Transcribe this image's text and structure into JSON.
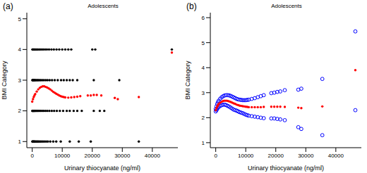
{
  "chart_data": [
    {
      "type": "scatter",
      "title": "Adolescents",
      "annotations": [
        "(a)"
      ],
      "x_label": "Urinary thiocyanate (ng/ml)",
      "y_label": "BMI Category",
      "xlim": [
        -1800,
        48500
      ],
      "xticks": [
        0,
        10000,
        20000,
        30000,
        40000
      ],
      "ylim": [
        0.8,
        5.2
      ],
      "yticks": [
        1,
        2,
        3,
        4,
        5
      ],
      "grid": false,
      "series": [
        {
          "color": "#000000",
          "marker": "circle",
          "x": [
            50,
            150,
            300,
            450,
            600,
            800,
            1000,
            1300,
            1600,
            1900,
            2200,
            2600,
            3000,
            3500,
            4000,
            4600,
            5200,
            6000,
            7000,
            8000,
            9500,
            12500,
            15500,
            19500,
            35500
          ],
          "values": [
            1,
            1,
            1,
            1,
            1,
            1,
            1,
            1,
            1,
            1,
            1,
            1,
            1,
            1,
            1,
            1,
            1,
            1,
            1,
            1,
            1,
            1,
            1,
            1,
            1
          ]
        },
        {
          "color": "#000000",
          "marker": "circle",
          "x": [
            30,
            120,
            250,
            400,
            550,
            700,
            900,
            1100,
            1400,
            1700,
            2000,
            2400,
            2800,
            3300,
            3800,
            4400,
            5000,
            5700,
            6500,
            7300,
            8200,
            9200,
            10300,
            11500,
            12500,
            13800,
            15000,
            16500,
            20500,
            22500,
            24000
          ],
          "values": [
            2,
            2,
            2,
            2,
            2,
            2,
            2,
            2,
            2,
            2,
            2,
            2,
            2,
            2,
            2,
            2,
            2,
            2,
            2,
            2,
            2,
            2,
            2,
            2,
            2,
            2,
            2,
            2,
            2,
            2,
            2
          ]
        },
        {
          "color": "#000000",
          "marker": "circle",
          "x": [
            40,
            140,
            280,
            420,
            580,
            750,
            950,
            1200,
            1500,
            1800,
            2100,
            2500,
            2900,
            3400,
            3900,
            4500,
            5100,
            5800,
            6600,
            7500,
            8500,
            9600,
            10500,
            11500,
            12500,
            13500,
            15000,
            20500,
            29000
          ],
          "values": [
            3,
            3,
            3,
            3,
            3,
            3,
            3,
            3,
            3,
            3,
            3,
            3,
            3,
            3,
            3,
            3,
            3,
            3,
            3,
            3,
            3,
            3,
            3,
            3,
            3,
            3,
            3,
            3,
            3
          ]
        },
        {
          "color": "#000000",
          "marker": "circle",
          "x": [
            60,
            180,
            320,
            480,
            650,
            850,
            1050,
            1300,
            1600,
            1900,
            2300,
            2700,
            3200,
            3700,
            4300,
            4900,
            5600,
            6400,
            7200,
            8100,
            9000,
            10000,
            11000,
            12000,
            13000,
            20000,
            21000,
            46500
          ],
          "values": [
            4,
            4,
            4,
            4,
            4,
            4,
            4,
            4,
            4,
            4,
            4,
            4,
            4,
            4,
            4,
            4,
            4,
            4,
            4,
            4,
            4,
            4,
            4,
            4,
            4,
            4,
            4,
            4
          ]
        },
        {
          "color": "#ff0000",
          "marker": "circle",
          "x": [
            0,
            250,
            500,
            750,
            1000,
            1500,
            2000,
            2500,
            3000,
            3500,
            4000,
            4500,
            5000,
            5500,
            6000,
            6500,
            7000,
            7500,
            8000,
            8500,
            9000,
            9500,
            10000,
            10500,
            11000,
            12000,
            13000,
            14000,
            15000,
            16000,
            18500,
            19500,
            20500,
            21500,
            23000,
            27500,
            28500,
            35500,
            46500
          ],
          "values": [
            2.3,
            2.38,
            2.45,
            2.5,
            2.55,
            2.63,
            2.7,
            2.75,
            2.78,
            2.8,
            2.8,
            2.78,
            2.76,
            2.73,
            2.7,
            2.66,
            2.62,
            2.59,
            2.56,
            2.53,
            2.5,
            2.48,
            2.46,
            2.45,
            2.44,
            2.43,
            2.44,
            2.45,
            2.46,
            2.48,
            2.5,
            2.5,
            2.52,
            2.52,
            2.5,
            2.42,
            2.38,
            2.45,
            3.9
          ]
        }
      ]
    },
    {
      "type": "scatter",
      "title": "Adolescents",
      "annotations": [
        "(b)"
      ],
      "x_label": "Urinary thiocyanate (ng/ml)",
      "y_label": "BMI Category",
      "xlim": [
        -1800,
        48500
      ],
      "xticks": [
        0,
        10000,
        20000,
        30000,
        40000
      ],
      "ylim": [
        0.8,
        6.2
      ],
      "yticks": [
        1,
        2,
        3,
        4,
        5,
        6
      ],
      "grid": false,
      "series": [
        {
          "color": "#0000ff",
          "marker": "open_circle",
          "x": [
            0,
            250,
            500,
            750,
            1000,
            1500,
            2000,
            2500,
            3000,
            3500,
            4000,
            4500,
            5000,
            5500,
            6000,
            6500,
            7000,
            7500,
            8000,
            8500,
            9000,
            9500,
            10000,
            10500,
            11000,
            12000,
            13000,
            14000,
            15000,
            16000,
            18500,
            19500,
            20500,
            21500,
            23000,
            27500,
            28500,
            35500,
            46500
          ],
          "values": [
            2.35,
            2.45,
            2.55,
            2.62,
            2.68,
            2.76,
            2.82,
            2.86,
            2.89,
            2.9,
            2.9,
            2.89,
            2.87,
            2.84,
            2.81,
            2.78,
            2.75,
            2.73,
            2.72,
            2.71,
            2.7,
            2.7,
            2.7,
            2.71,
            2.72,
            2.75,
            2.78,
            2.82,
            2.86,
            2.9,
            2.98,
            3.0,
            3.03,
            3.05,
            3.1,
            3.12,
            3.16,
            3.55,
            5.45
          ]
        },
        {
          "color": "#0000ff",
          "marker": "open_circle",
          "x": [
            0,
            250,
            500,
            750,
            1000,
            1500,
            2000,
            2500,
            3000,
            3500,
            4000,
            4500,
            5000,
            5500,
            6000,
            6500,
            7000,
            7500,
            8000,
            8500,
            9000,
            9500,
            10000,
            10500,
            11000,
            12000,
            13000,
            14000,
            15000,
            16000,
            18500,
            19500,
            20500,
            21500,
            23000,
            27500,
            28500,
            35500,
            46500
          ],
          "values": [
            2.25,
            2.3,
            2.35,
            2.4,
            2.43,
            2.47,
            2.5,
            2.52,
            2.52,
            2.5,
            2.47,
            2.44,
            2.4,
            2.36,
            2.32,
            2.3,
            2.28,
            2.25,
            2.22,
            2.2,
            2.18,
            2.15,
            2.12,
            2.1,
            2.08,
            2.06,
            2.04,
            2.02,
            2.0,
            1.98,
            1.97,
            1.97,
            1.95,
            1.93,
            1.9,
            1.62,
            1.55,
            1.3,
            2.3
          ]
        },
        {
          "color": "#ff0000",
          "marker": "circle",
          "x": [
            0,
            250,
            500,
            750,
            1000,
            1500,
            2000,
            2500,
            3000,
            3500,
            4000,
            4500,
            5000,
            5500,
            6000,
            6500,
            7000,
            7500,
            8000,
            8500,
            9000,
            9500,
            10000,
            10500,
            11000,
            12000,
            13000,
            14000,
            15000,
            16000,
            18500,
            19500,
            20500,
            21500,
            23000,
            27500,
            28500,
            35500,
            46500
          ],
          "values": [
            2.3,
            2.38,
            2.45,
            2.5,
            2.55,
            2.6,
            2.64,
            2.67,
            2.68,
            2.68,
            2.67,
            2.65,
            2.63,
            2.6,
            2.57,
            2.55,
            2.52,
            2.5,
            2.48,
            2.47,
            2.46,
            2.45,
            2.44,
            2.43,
            2.42,
            2.42,
            2.42,
            2.42,
            2.42,
            2.43,
            2.44,
            2.44,
            2.44,
            2.44,
            2.43,
            2.4,
            2.38,
            2.45,
            3.9
          ]
        }
      ]
    }
  ]
}
